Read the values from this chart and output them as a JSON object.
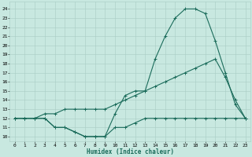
{
  "xlabel": "Humidex (Indice chaleur)",
  "bg_color": "#c8e8e0",
  "line_color": "#1a6b5a",
  "grid_color": "#a8ccc4",
  "xlim": [
    -0.5,
    23.5
  ],
  "ylim": [
    9.5,
    24.8
  ],
  "xticks": [
    0,
    1,
    2,
    3,
    4,
    5,
    6,
    7,
    8,
    9,
    10,
    11,
    12,
    13,
    14,
    15,
    16,
    17,
    18,
    19,
    20,
    21,
    22,
    23
  ],
  "yticks": [
    10,
    11,
    12,
    13,
    14,
    15,
    16,
    17,
    18,
    19,
    20,
    21,
    22,
    23,
    24
  ],
  "line1_x": [
    0,
    1,
    2,
    3,
    4,
    5,
    6,
    7,
    8,
    9,
    10,
    11,
    12,
    13,
    14,
    15,
    16,
    17,
    18,
    19,
    20,
    21,
    22,
    23
  ],
  "line1_y": [
    12,
    12,
    12,
    12,
    11,
    11,
    10.5,
    10,
    10,
    10,
    12.5,
    14.5,
    15,
    15,
    18.5,
    21,
    23,
    24,
    24,
    23.5,
    20.5,
    17,
    13.5,
    12
  ],
  "line2_x": [
    0,
    1,
    2,
    3,
    4,
    5,
    6,
    7,
    8,
    9,
    10,
    11,
    12,
    13,
    14,
    15,
    16,
    17,
    18,
    19,
    20,
    21,
    22,
    23
  ],
  "line2_y": [
    12,
    12,
    12,
    12.5,
    12.5,
    13,
    13,
    13,
    13,
    13,
    13.5,
    14,
    14.5,
    15,
    15.5,
    16,
    16.5,
    17,
    17.5,
    18,
    18.5,
    16.5,
    14,
    12
  ],
  "line3_x": [
    0,
    1,
    2,
    3,
    4,
    5,
    6,
    7,
    8,
    9,
    10,
    11,
    12,
    13,
    14,
    15,
    16,
    17,
    18,
    19,
    20,
    21,
    22,
    23
  ],
  "line3_y": [
    12,
    12,
    12,
    12,
    11,
    11,
    10.5,
    10,
    10,
    10,
    11,
    11,
    11.5,
    12,
    12,
    12,
    12,
    12,
    12,
    12,
    12,
    12,
    12,
    12
  ],
  "marker": "+",
  "markersize": 3,
  "linewidth": 0.8,
  "tick_fontsize": 4.5,
  "xlabel_fontsize": 5.5
}
